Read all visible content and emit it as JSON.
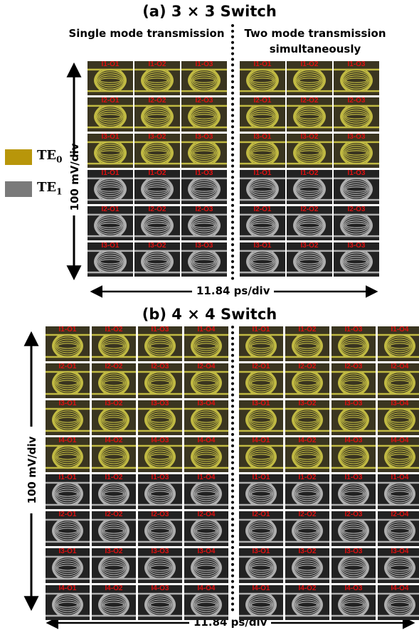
{
  "panel_a": {
    "title": "(a) 3 × 3 Switch",
    "left_heading": "Single mode transmission",
    "right_heading_1": "Two mode transmission",
    "right_heading_2": "simultaneously",
    "y_axis_label": "100 mV/div",
    "x_axis_label": "11.84 ps/div",
    "te0_rows": [
      [
        "I1-O1",
        "I1-O2",
        "I1-O3"
      ],
      [
        "I2-O1",
        "I2-O2",
        "I2-O3"
      ],
      [
        "I3-O1",
        "I3-O2",
        "I3-O3"
      ]
    ],
    "te1_rows": [
      [
        "I1-O1",
        "I1-O2",
        "I1-O3"
      ],
      [
        "I2-O1",
        "I2-O2",
        "I2-O3"
      ],
      [
        "I3-O1",
        "I3-O2",
        "I3-O3"
      ]
    ]
  },
  "panel_b": {
    "title": "(b) 4 × 4 Switch",
    "y_axis_label": "100 mV/div",
    "x_axis_label": "11.84 ps/div",
    "te0_rows": [
      [
        "I1-O1",
        "I1-O2",
        "I1-O3",
        "I1-O4"
      ],
      [
        "I2-O1",
        "I2-O2",
        "I2-O3",
        "I2-O4"
      ],
      [
        "I3-O1",
        "I3-O2",
        "I3-O3",
        "I3-O4"
      ],
      [
        "I4-O1",
        "I4-O2",
        "I4-O3",
        "I4-O4"
      ]
    ],
    "te1_rows": [
      [
        "I1-O1",
        "I1-O2",
        "I1-O3",
        "I1-O4"
      ],
      [
        "I2-O1",
        "I2-O2",
        "I2-O3",
        "I2-O4"
      ],
      [
        "I3-O1",
        "I3-O2",
        "I3-O3",
        "I3-O4"
      ],
      [
        "I4-O1",
        "I4-O2",
        "I4-O3",
        "I4-O4"
      ]
    ]
  },
  "legend": {
    "te0_label": "TE0",
    "te1_label": "TE1",
    "te0_color": "#b8960a",
    "te1_color": "#7a7a7a"
  },
  "colors": {
    "label_red": "#e01010",
    "te0_trace": "#d9d24a",
    "te1_trace": "#c8c8c8"
  }
}
